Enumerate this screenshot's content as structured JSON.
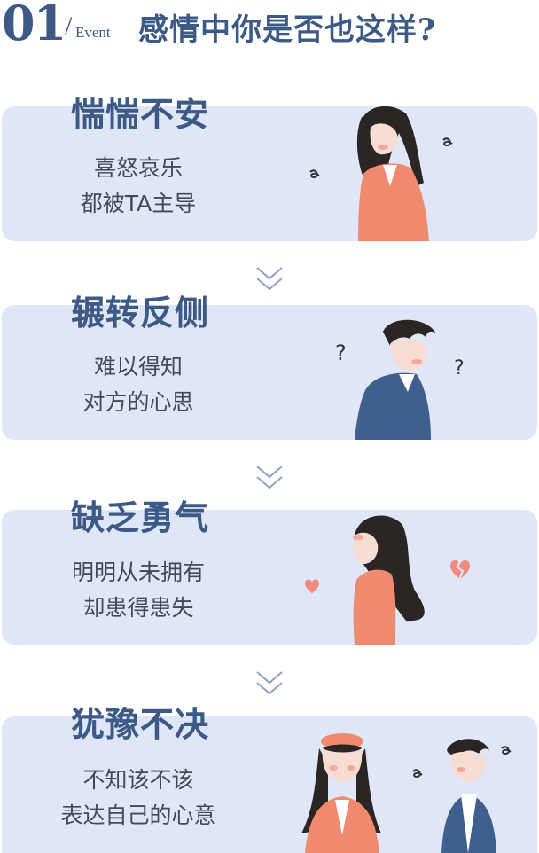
{
  "header": {
    "number": "01",
    "slash": "/",
    "event": "Event",
    "title": "感情中你是否也这样?"
  },
  "cards": [
    {
      "title": "惴惴不安",
      "line1": "喜怒哀乐",
      "line2": "都被TA主导"
    },
    {
      "title": "辗转反侧",
      "line1": "难以得知",
      "line2": "对方的心思",
      "mark": "?"
    },
    {
      "title": "缺乏勇气",
      "line1": "明明从未拥有",
      "line2": "却患得患失"
    },
    {
      "title": "犹豫不决",
      "line1": "不知该不该",
      "line2": "表达自己的心意"
    }
  ],
  "colors": {
    "card_bg": "#dfe6f8",
    "title": "#3d5a86",
    "text": "#444a55",
    "coral": "#f08a6e",
    "navy": "#3f5f8e",
    "hair": "#2b2523",
    "skin": "#f6ddd3"
  }
}
